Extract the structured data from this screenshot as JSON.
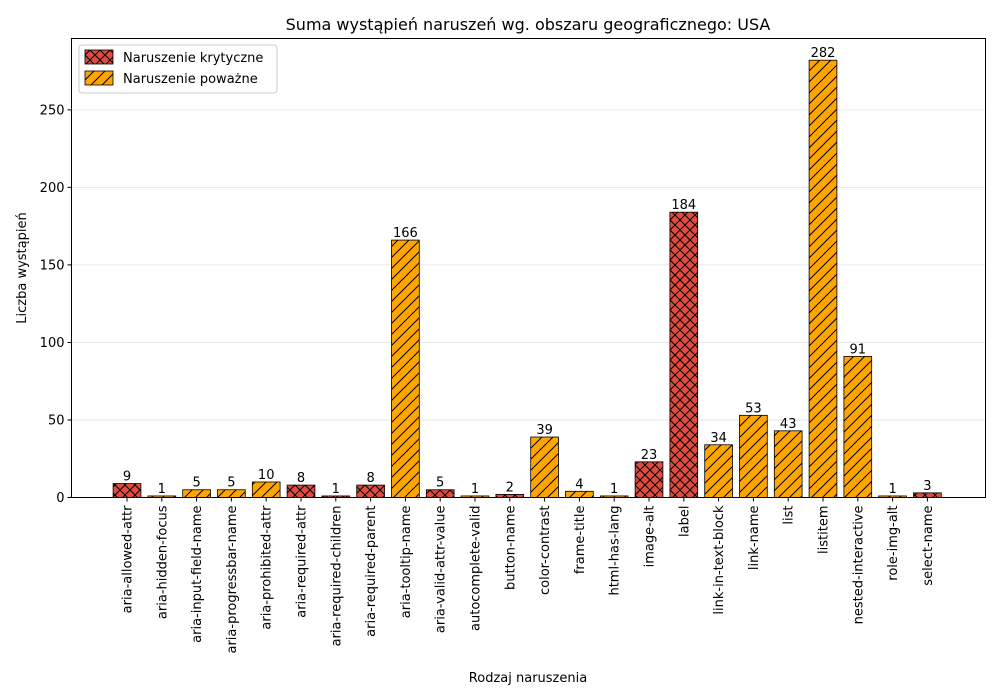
{
  "chart_data": {
    "type": "bar",
    "title": "Suma wystąpień naruszeń wg. obszaru geograficznego: USA",
    "xlabel": "Rodzaj naruszenia",
    "ylabel": "Liczba wystąpień",
    "ylim": [
      0,
      296
    ],
    "yticks": [
      0,
      50,
      100,
      150,
      200,
      250
    ],
    "grid": "y",
    "legend_position": "top-left",
    "categories": [
      "aria-allowed-attr",
      "aria-hidden-focus",
      "aria-input-field-name",
      "aria-progressbar-name",
      "aria-prohibited-attr",
      "aria-required-attr",
      "aria-required-children",
      "aria-required-parent",
      "aria-tooltip-name",
      "aria-valid-attr-value",
      "autocomplete-valid",
      "button-name",
      "color-contrast",
      "frame-title",
      "html-has-lang",
      "image-alt",
      "label",
      "link-in-text-block",
      "link-name",
      "list",
      "listitem",
      "nested-interactive",
      "role-img-alt",
      "select-name"
    ],
    "values": [
      9,
      1,
      5,
      5,
      10,
      8,
      1,
      8,
      166,
      5,
      1,
      2,
      39,
      4,
      1,
      23,
      184,
      34,
      53,
      43,
      282,
      91,
      1,
      3
    ],
    "severity": [
      "critical",
      "serious",
      "serious",
      "serious",
      "serious",
      "critical",
      "critical",
      "critical",
      "serious",
      "critical",
      "serious",
      "critical",
      "serious",
      "serious",
      "serious",
      "critical",
      "critical",
      "serious",
      "serious",
      "serious",
      "serious",
      "serious",
      "serious",
      "critical"
    ],
    "series": [
      {
        "key": "critical",
        "name": "Naruszenie krytyczne",
        "color": "#e04b3e",
        "hatch": "cross"
      },
      {
        "key": "serious",
        "name": "Naruszenie poważne",
        "color": "#ffa500",
        "hatch": "diagonal"
      }
    ]
  }
}
